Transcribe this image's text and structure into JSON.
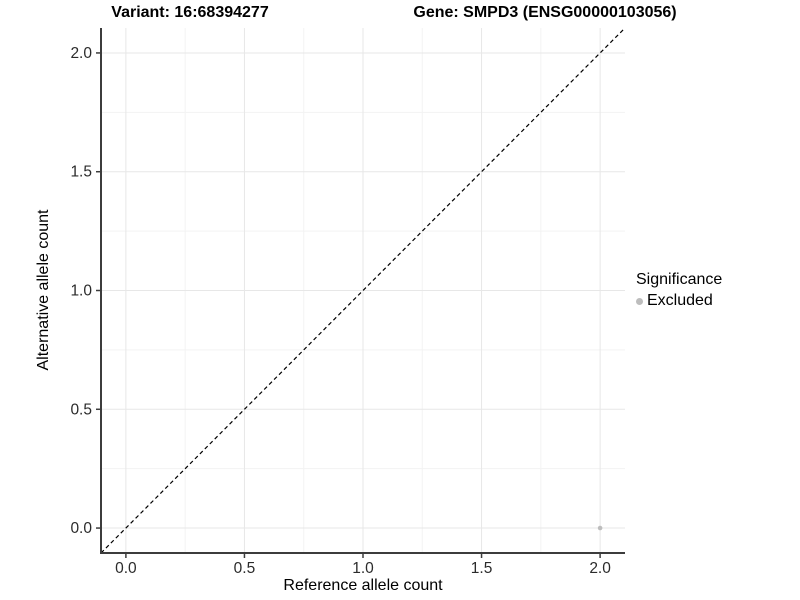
{
  "chart_data": {
    "type": "scatter",
    "title_left": "Variant: 16:68394277",
    "title_right": "Gene: SMPD3 (ENSG00000103056)",
    "xlabel": "Reference allele count",
    "ylabel": "Alternative allele count",
    "xlim": [
      -0.105,
      2.105
    ],
    "ylim": [
      -0.105,
      2.105
    ],
    "xticks": [
      0.0,
      0.5,
      1.0,
      1.5,
      2.0
    ],
    "yticks": [
      0.0,
      0.5,
      1.0,
      1.5,
      2.0
    ],
    "xminor": [
      0.25,
      0.75,
      1.25,
      1.75
    ],
    "yminor": [
      0.25,
      0.75,
      1.25,
      1.75
    ],
    "tick_decimals": 1,
    "grid": "major+minor",
    "reference_line": {
      "style": "dashed",
      "slope": 1,
      "intercept": 0,
      "color": "#000000"
    },
    "series": [
      {
        "name": "Excluded",
        "color": "#bdbdbd",
        "points": [
          {
            "x": 2.0,
            "y": 0.0
          }
        ]
      }
    ],
    "legend": {
      "title": "Significance",
      "position": "right",
      "items": [
        {
          "label": "Excluded",
          "color": "#bdbdbd"
        }
      ]
    }
  }
}
